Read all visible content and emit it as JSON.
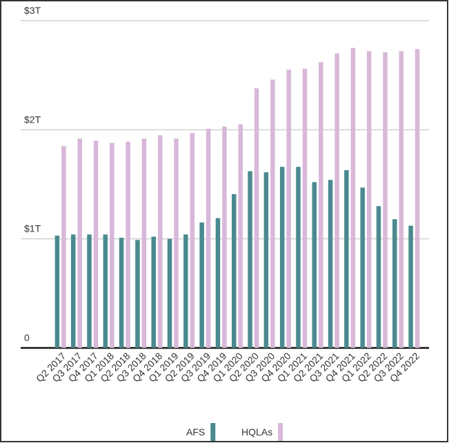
{
  "chart_data": {
    "type": "bar",
    "categories": [
      "Q2 2017",
      "Q3 2017",
      "Q4 2017",
      "Q1 2018",
      "Q2 2018",
      "Q3 2018",
      "Q4 2018",
      "Q1 2019",
      "Q2 2019",
      "Q3 2019",
      "Q4 2019",
      "Q1 2020",
      "Q2 2020",
      "Q3 2020",
      "Q4 2020",
      "Q1 2021",
      "Q2 2021",
      "Q3 2021",
      "Q4 2021",
      "Q1 2022",
      "Q2 2022",
      "Q3 2022",
      "Q4 2022"
    ],
    "series": [
      {
        "name": "AFS",
        "color": "#4a8a8f",
        "values": [
          1.03,
          1.04,
          1.04,
          1.04,
          1.01,
          0.99,
          1.02,
          1.0,
          1.04,
          1.15,
          1.19,
          1.41,
          1.62,
          1.61,
          1.66,
          1.66,
          1.52,
          1.54,
          1.63,
          1.47,
          1.3,
          1.18,
          1.12
        ]
      },
      {
        "name": "HQLAs",
        "color": "#d8b8d8",
        "values": [
          1.85,
          1.92,
          1.9,
          1.88,
          1.89,
          1.92,
          1.95,
          1.92,
          1.97,
          2.01,
          2.03,
          2.05,
          2.38,
          2.46,
          2.55,
          2.56,
          2.62,
          2.7,
          2.75,
          2.72,
          2.71,
          2.72,
          2.74
        ]
      }
    ],
    "ylim": [
      0,
      3
    ],
    "yticks": [
      0,
      {
        "value": 1,
        "label": "$1T"
      },
      {
        "value": 2,
        "label": "$2T"
      },
      {
        "value": 3,
        "label": "$3T"
      }
    ],
    "grid": true
  }
}
